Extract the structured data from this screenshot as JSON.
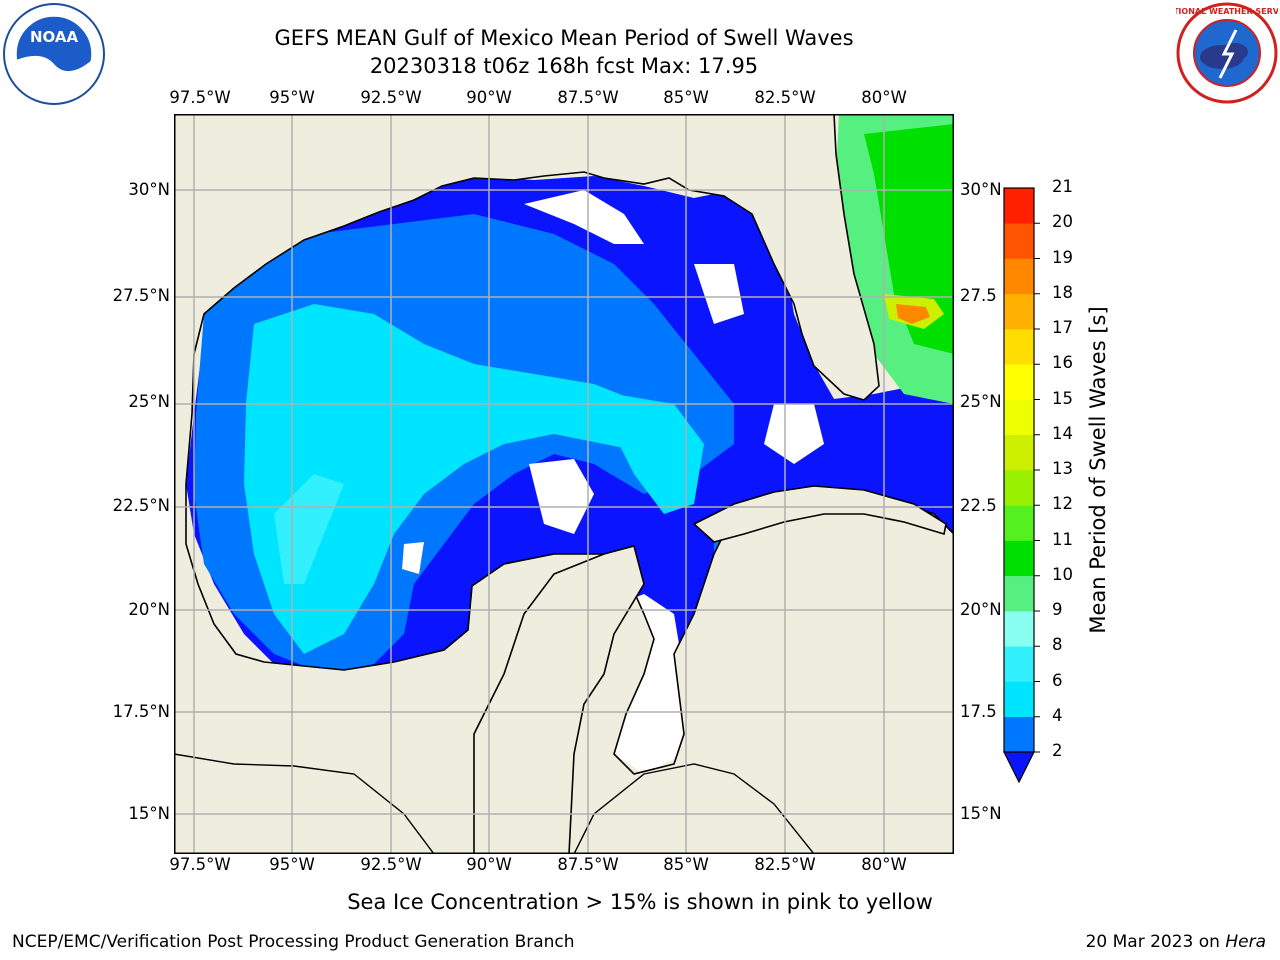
{
  "title": {
    "line1": "GEFS MEAN Gulf of Mexico Mean Period of Swell Waves",
    "line2": "20230318 t06z 168h fcst   Max: 17.95"
  },
  "logos": {
    "left": "noaa-logo",
    "right": "nws-logo",
    "left_text": "NOAA",
    "right_text": "NATIONAL WEATHER SERVICE"
  },
  "map": {
    "lon_ticks": [
      "97.5°W",
      "95°W",
      "92.5°W",
      "90°W",
      "87.5°W",
      "85°W",
      "82.5°W",
      "80°W"
    ],
    "lat_ticks_left": [
      "30°N",
      "27.5°N",
      "25°N",
      "22.5°N",
      "20°N",
      "17.5°N",
      "15°N"
    ],
    "lat_ticks_right": [
      "30°N",
      "27.5",
      "25°N",
      "22.5",
      "20°N",
      "17.5",
      "15°N"
    ],
    "lon_range": [
      -98,
      -78
    ],
    "lat_range": [
      14,
      32
    ],
    "gridlines": true,
    "land_color": "#eeedde",
    "no_data_color": "#ffffff"
  },
  "colorbar": {
    "label": "Mean Period of Swell Waves [s]",
    "ticks": [
      "2",
      "4",
      "6",
      "8",
      "9",
      "10",
      "11",
      "12",
      "13",
      "14",
      "15",
      "16",
      "17",
      "18",
      "19",
      "20",
      "21"
    ],
    "colors": [
      "#0077ff",
      "#00e5ff",
      "#33f0ff",
      "#88fff0",
      "#55f080",
      "#00e000",
      "#55f020",
      "#99f000",
      "#ccf000",
      "#eeff00",
      "#ffff00",
      "#ffdd00",
      "#ffb000",
      "#ff8800",
      "#ff5500",
      "#ff2000"
    ],
    "extend_color": "#0a14ff"
  },
  "ice_note": "Sea Ice Concentration > 15% is shown in pink to yellow",
  "footer": {
    "left": "NCEP/EMC/Verification Post Processing Product Generation Branch",
    "right_date": "20 Mar 2023 on ",
    "right_host": "Hera"
  }
}
